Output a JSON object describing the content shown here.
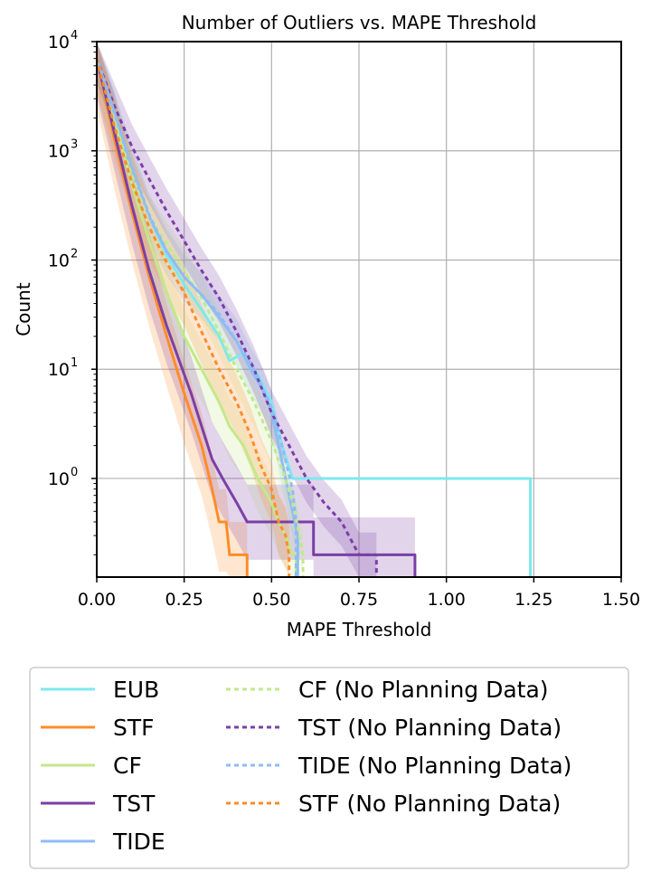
{
  "chart_data": {
    "type": "line",
    "title": "Number of Outliers vs. MAPE Threshold",
    "xlabel": "MAPE Threshold",
    "ylabel": "Count",
    "yscale": "log",
    "xlim": [
      0,
      1.5
    ],
    "ylim": [
      0.125,
      10000
    ],
    "grid": true,
    "x_ticks": [
      0,
      0.25,
      0.5,
      0.75,
      1.0,
      1.25,
      1.5
    ],
    "x_tick_labels": [
      "0.00",
      "0.25",
      "0.50",
      "0.75",
      "1.00",
      "1.25",
      "1.50"
    ],
    "y_ticks": [
      1,
      10,
      100,
      1000,
      10000
    ],
    "y_tick_labels": [
      {
        "base": "10",
        "exp": "0"
      },
      {
        "base": "10",
        "exp": "1"
      },
      {
        "base": "10",
        "exp": "2"
      },
      {
        "base": "10",
        "exp": "3"
      },
      {
        "base": "10",
        "exp": "4"
      }
    ],
    "legend_position": "below",
    "series": [
      {
        "name": "EUB",
        "color": "#7ee8ef",
        "dash": false,
        "band": null,
        "x": [
          0,
          0.05,
          0.1,
          0.15,
          0.2,
          0.25,
          0.3,
          0.35,
          0.38,
          0.42,
          0.46,
          0.5,
          0.53,
          0.56,
          0.58,
          0.6,
          1.0,
          1.24,
          1.24
        ],
        "y": [
          7000,
          2200,
          700,
          250,
          110,
          60,
          35,
          20,
          12,
          14,
          9,
          5,
          2,
          1,
          1,
          1,
          1,
          1,
          0.125
        ]
      },
      {
        "name": "STF",
        "color": "#ff8c28",
        "dash": false,
        "band": {
          "lo": 0.35,
          "hi": 2.0
        },
        "x": [
          0,
          0.05,
          0.1,
          0.15,
          0.2,
          0.25,
          0.3,
          0.33,
          0.35,
          0.37,
          0.38,
          0.43,
          0.43
        ],
        "y": [
          7000,
          1300,
          280,
          70,
          20,
          6,
          2,
          0.8,
          0.4,
          0.4,
          0.2,
          0.2,
          0.125
        ]
      },
      {
        "name": "CF",
        "color": "#c3e88c",
        "dash": false,
        "band": {
          "lo": 0.5,
          "hi": 1.8
        },
        "x": [
          0,
          0.05,
          0.1,
          0.15,
          0.2,
          0.25,
          0.3,
          0.35,
          0.38,
          0.42,
          0.46,
          0.5,
          0.52,
          0.54,
          0.56,
          0.57,
          0.57
        ],
        "y": [
          7000,
          2000,
          500,
          150,
          50,
          20,
          10,
          5,
          3,
          2,
          1,
          0.6,
          0.4,
          0.3,
          0.2,
          0.2,
          0.125
        ]
      },
      {
        "name": "TST",
        "color": "#7b3fa6",
        "dash": false,
        "band": {
          "lo": 0.45,
          "hi": 2.2
        },
        "x": [
          0,
          0.05,
          0.1,
          0.15,
          0.2,
          0.25,
          0.27,
          0.3,
          0.33,
          0.36,
          0.4,
          0.43,
          0.45,
          0.55,
          0.6,
          0.62,
          0.62,
          0.91,
          0.91
        ],
        "y": [
          7000,
          1500,
          320,
          80,
          25,
          9,
          6,
          3,
          1.5,
          1,
          0.6,
          0.4,
          0.4,
          0.4,
          0.4,
          0.4,
          0.2,
          0.2,
          0.125
        ]
      },
      {
        "name": "TIDE",
        "color": "#8fbcf5",
        "dash": false,
        "band": {
          "lo": 0.6,
          "hi": 1.6
        },
        "x": [
          0,
          0.05,
          0.1,
          0.15,
          0.2,
          0.25,
          0.3,
          0.35,
          0.4,
          0.44,
          0.48,
          0.5,
          0.52,
          0.54,
          0.56,
          0.575,
          0.575
        ],
        "y": [
          7000,
          2200,
          700,
          250,
          120,
          70,
          48,
          30,
          18,
          10,
          6,
          4,
          2,
          1,
          0.5,
          0.3,
          0.125
        ]
      },
      {
        "name": "CF (No Planning Data)",
        "color": "#c3e88c",
        "dash": true,
        "band": {
          "lo": 0.6,
          "hi": 1.6
        },
        "x": [
          0,
          0.05,
          0.1,
          0.15,
          0.2,
          0.25,
          0.3,
          0.35,
          0.4,
          0.45,
          0.5,
          0.54,
          0.56,
          0.58,
          0.59,
          0.59
        ],
        "y": [
          7000,
          1900,
          600,
          250,
          140,
          80,
          45,
          22,
          10,
          5,
          2.2,
          1,
          0.6,
          0.3,
          0.2,
          0.125
        ]
      },
      {
        "name": "TST (No Planning Data)",
        "color": "#7b3fa6",
        "dash": true,
        "band": {
          "lo": 0.6,
          "hi": 1.6
        },
        "x": [
          0,
          0.05,
          0.1,
          0.15,
          0.2,
          0.25,
          0.3,
          0.35,
          0.4,
          0.45,
          0.5,
          0.55,
          0.6,
          0.65,
          0.7,
          0.75,
          0.8,
          0.8
        ],
        "y": [
          7000,
          2600,
          1100,
          550,
          280,
          150,
          80,
          45,
          22,
          10,
          4,
          2,
          1,
          0.6,
          0.4,
          0.2,
          0.2,
          0.125
        ]
      },
      {
        "name": "TIDE (No Planning Data)",
        "color": "#8fbcf5",
        "dash": true,
        "band": null,
        "x": [
          0,
          0.05,
          0.1,
          0.15,
          0.2,
          0.25,
          0.3,
          0.35,
          0.4,
          0.45,
          0.5,
          0.53,
          0.56,
          0.57,
          0.57
        ],
        "y": [
          7000,
          2300,
          720,
          260,
          120,
          70,
          48,
          32,
          18,
          10,
          4.5,
          2,
          0.8,
          0.4,
          0.125
        ]
      },
      {
        "name": "STF (No Planning Data)",
        "color": "#ff8c28",
        "dash": true,
        "band": {
          "lo": 0.5,
          "hi": 1.8
        },
        "x": [
          0,
          0.05,
          0.1,
          0.15,
          0.2,
          0.25,
          0.3,
          0.35,
          0.4,
          0.44,
          0.47,
          0.5,
          0.52,
          0.54,
          0.55,
          0.55
        ],
        "y": [
          7000,
          1700,
          520,
          200,
          95,
          50,
          22,
          10,
          5,
          2.5,
          1.3,
          0.8,
          0.4,
          0.3,
          0.2,
          0.125
        ]
      }
    ]
  }
}
